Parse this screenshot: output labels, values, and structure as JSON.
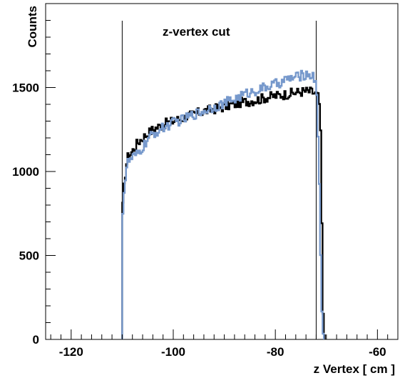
{
  "chart_data": {
    "type": "line",
    "drawstyle": "histogram-step",
    "xlabel": "z Vertex [ cm ]",
    "ylabel": "Counts",
    "xlim": [
      -125,
      -56
    ],
    "ylim": [
      0,
      2000
    ],
    "x_ticks": [
      -120,
      -100,
      -80,
      -60
    ],
    "y_ticks": [
      0,
      500,
      1000,
      1500
    ],
    "grid": false,
    "annotation": "z-vertex cut",
    "cut_lines": [
      -110,
      -72
    ],
    "bin_width": 0.25,
    "series": [
      {
        "color": "#000000",
        "x": [
          -110,
          -109.9,
          -109.5,
          -109,
          -108,
          -107,
          -106,
          -105,
          -104,
          -103,
          -102,
          -101,
          -100,
          -99,
          -98,
          -97,
          -96,
          -95,
          -94,
          -93,
          -92,
          -91,
          -90,
          -89,
          -88,
          -87,
          -86,
          -85,
          -84,
          -83,
          -82,
          -81,
          -80,
          -79,
          -78,
          -77,
          -76,
          -75,
          -74,
          -73,
          -72.5,
          -72,
          -71.5,
          -71.2,
          -71,
          -70.8,
          -70.6,
          -70.3
        ],
        "y": [
          0,
          780,
          960,
          1080,
          1120,
          1170,
          1200,
          1225,
          1250,
          1265,
          1280,
          1290,
          1300,
          1310,
          1320,
          1330,
          1340,
          1350,
          1360,
          1365,
          1372,
          1380,
          1385,
          1395,
          1400,
          1410,
          1415,
          1420,
          1425,
          1430,
          1440,
          1445,
          1450,
          1455,
          1460,
          1465,
          1470,
          1475,
          1478,
          1475,
          1470,
          1460,
          1440,
          1350,
          1000,
          500,
          100,
          0
        ]
      },
      {
        "color": "#7799cc",
        "x": [
          -110,
          -109.9,
          -109.5,
          -109,
          -108,
          -107,
          -106,
          -105,
          -104,
          -103,
          -102,
          -101,
          -100,
          -99,
          -98,
          -97,
          -96,
          -95,
          -94,
          -93,
          -92,
          -91,
          -90,
          -89,
          -88,
          -87,
          -86,
          -85,
          -84,
          -83,
          -82,
          -81,
          -80,
          -79,
          -78,
          -77,
          -76,
          -75,
          -74,
          -73,
          -72.5,
          -72,
          -71.8,
          -71.6,
          -71.4,
          -71.2,
          -71,
          -70.8,
          -70.5
        ],
        "y": [
          0,
          760,
          930,
          1050,
          1080,
          1100,
          1140,
          1190,
          1220,
          1240,
          1260,
          1275,
          1290,
          1300,
          1310,
          1325,
          1340,
          1350,
          1360,
          1375,
          1385,
          1395,
          1405,
          1420,
          1430,
          1445,
          1460,
          1470,
          1480,
          1490,
          1500,
          1510,
          1520,
          1530,
          1545,
          1555,
          1560,
          1570,
          1580,
          1575,
          1560,
          1540,
          1400,
          1200,
          1000,
          600,
          300,
          80,
          0
        ]
      }
    ]
  }
}
